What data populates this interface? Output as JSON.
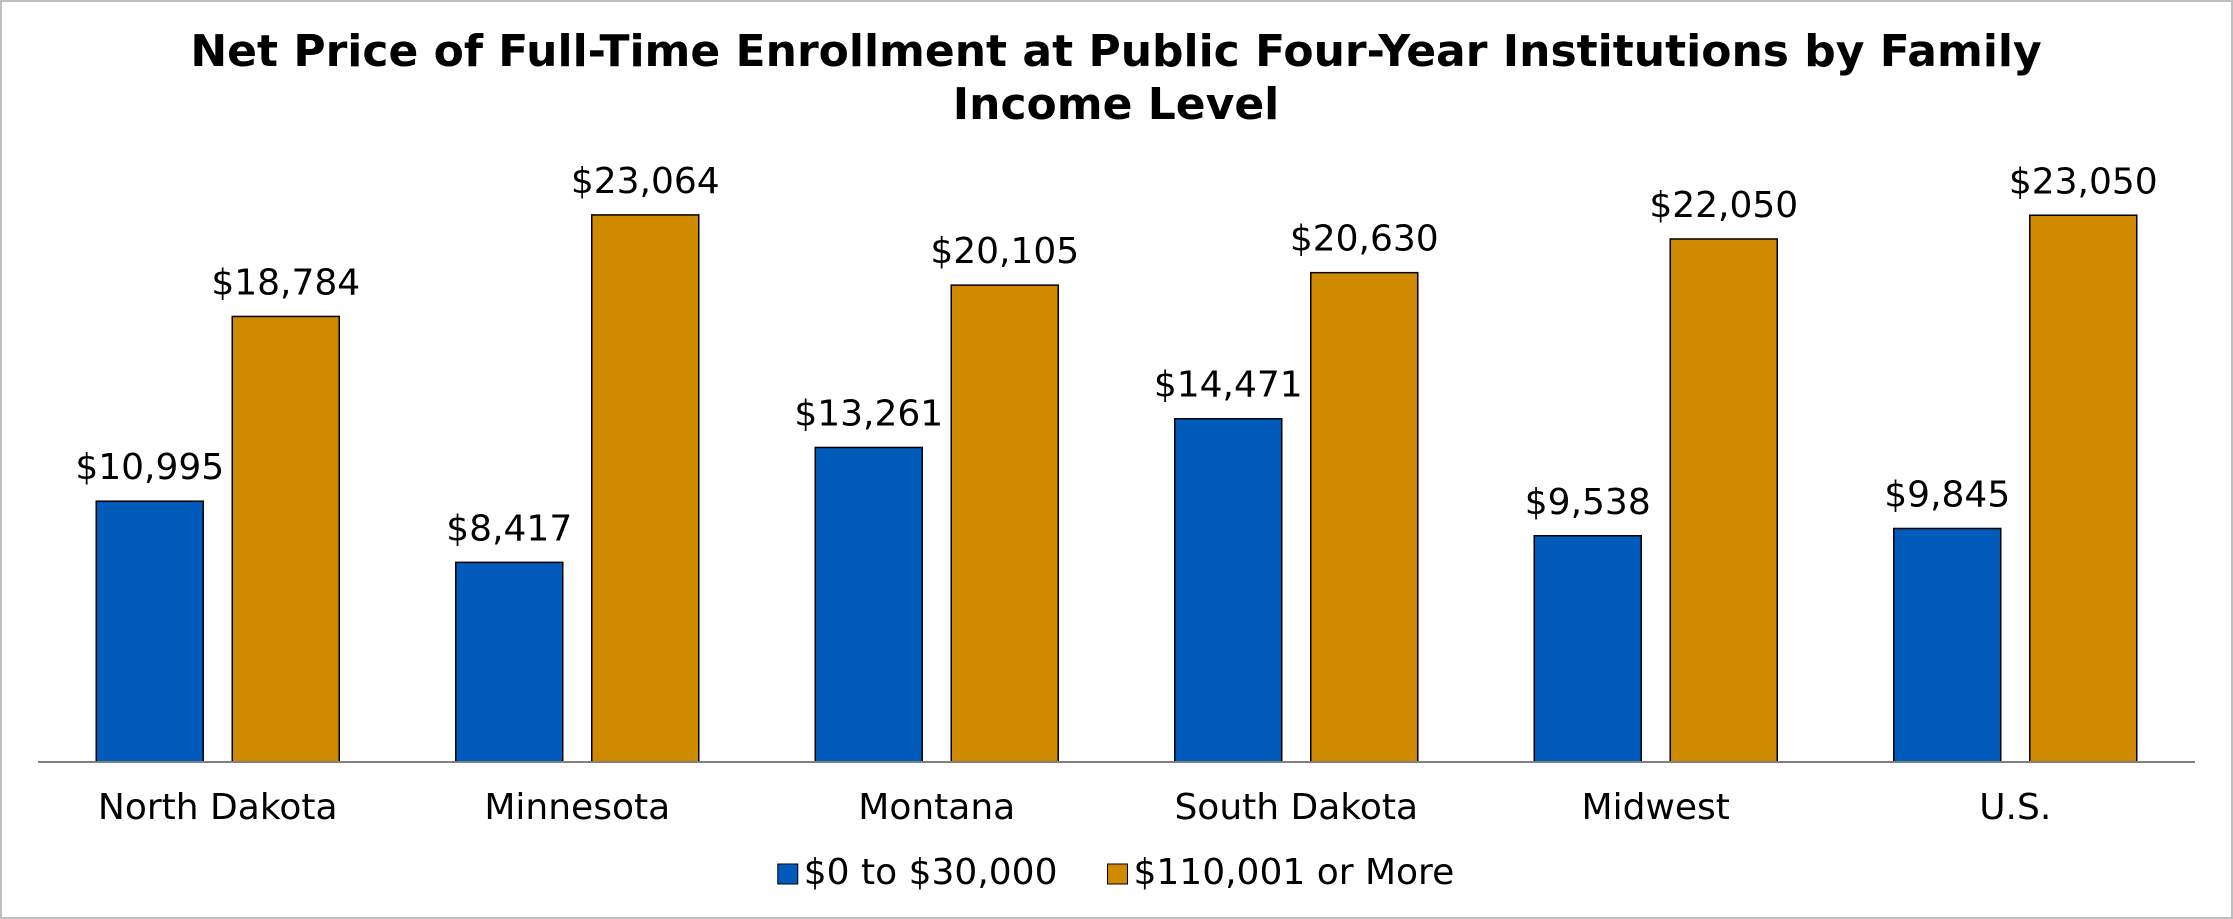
{
  "chart_data": {
    "type": "bar",
    "title": "Net Price of Full-Time Enrollment at Public Four-Year Institutions by Family Income Level",
    "categories": [
      "North Dakota",
      "Minnesota",
      "Montana",
      "South Dakota",
      "Midwest",
      "U.S."
    ],
    "series": [
      {
        "name": "$0 to $30,000",
        "color": "#005bbb",
        "values": [
          10995,
          8417,
          13261,
          14471,
          9538,
          9845
        ],
        "value_labels": [
          "$10,995",
          "$8,417",
          "$13,261",
          "$14,471",
          "$9,538",
          "$9,845"
        ]
      },
      {
        "name": "$110,001 or More",
        "color": "#d08a00",
        "values": [
          18784,
          23064,
          20105,
          20630,
          22050,
          23050
        ],
        "value_labels": [
          "$18,784",
          "$23,064",
          "$20,105",
          "$20,630",
          "$22,050",
          "$23,050"
        ]
      }
    ],
    "ylim": [
      0,
      25000
    ],
    "legend": "bottom"
  }
}
